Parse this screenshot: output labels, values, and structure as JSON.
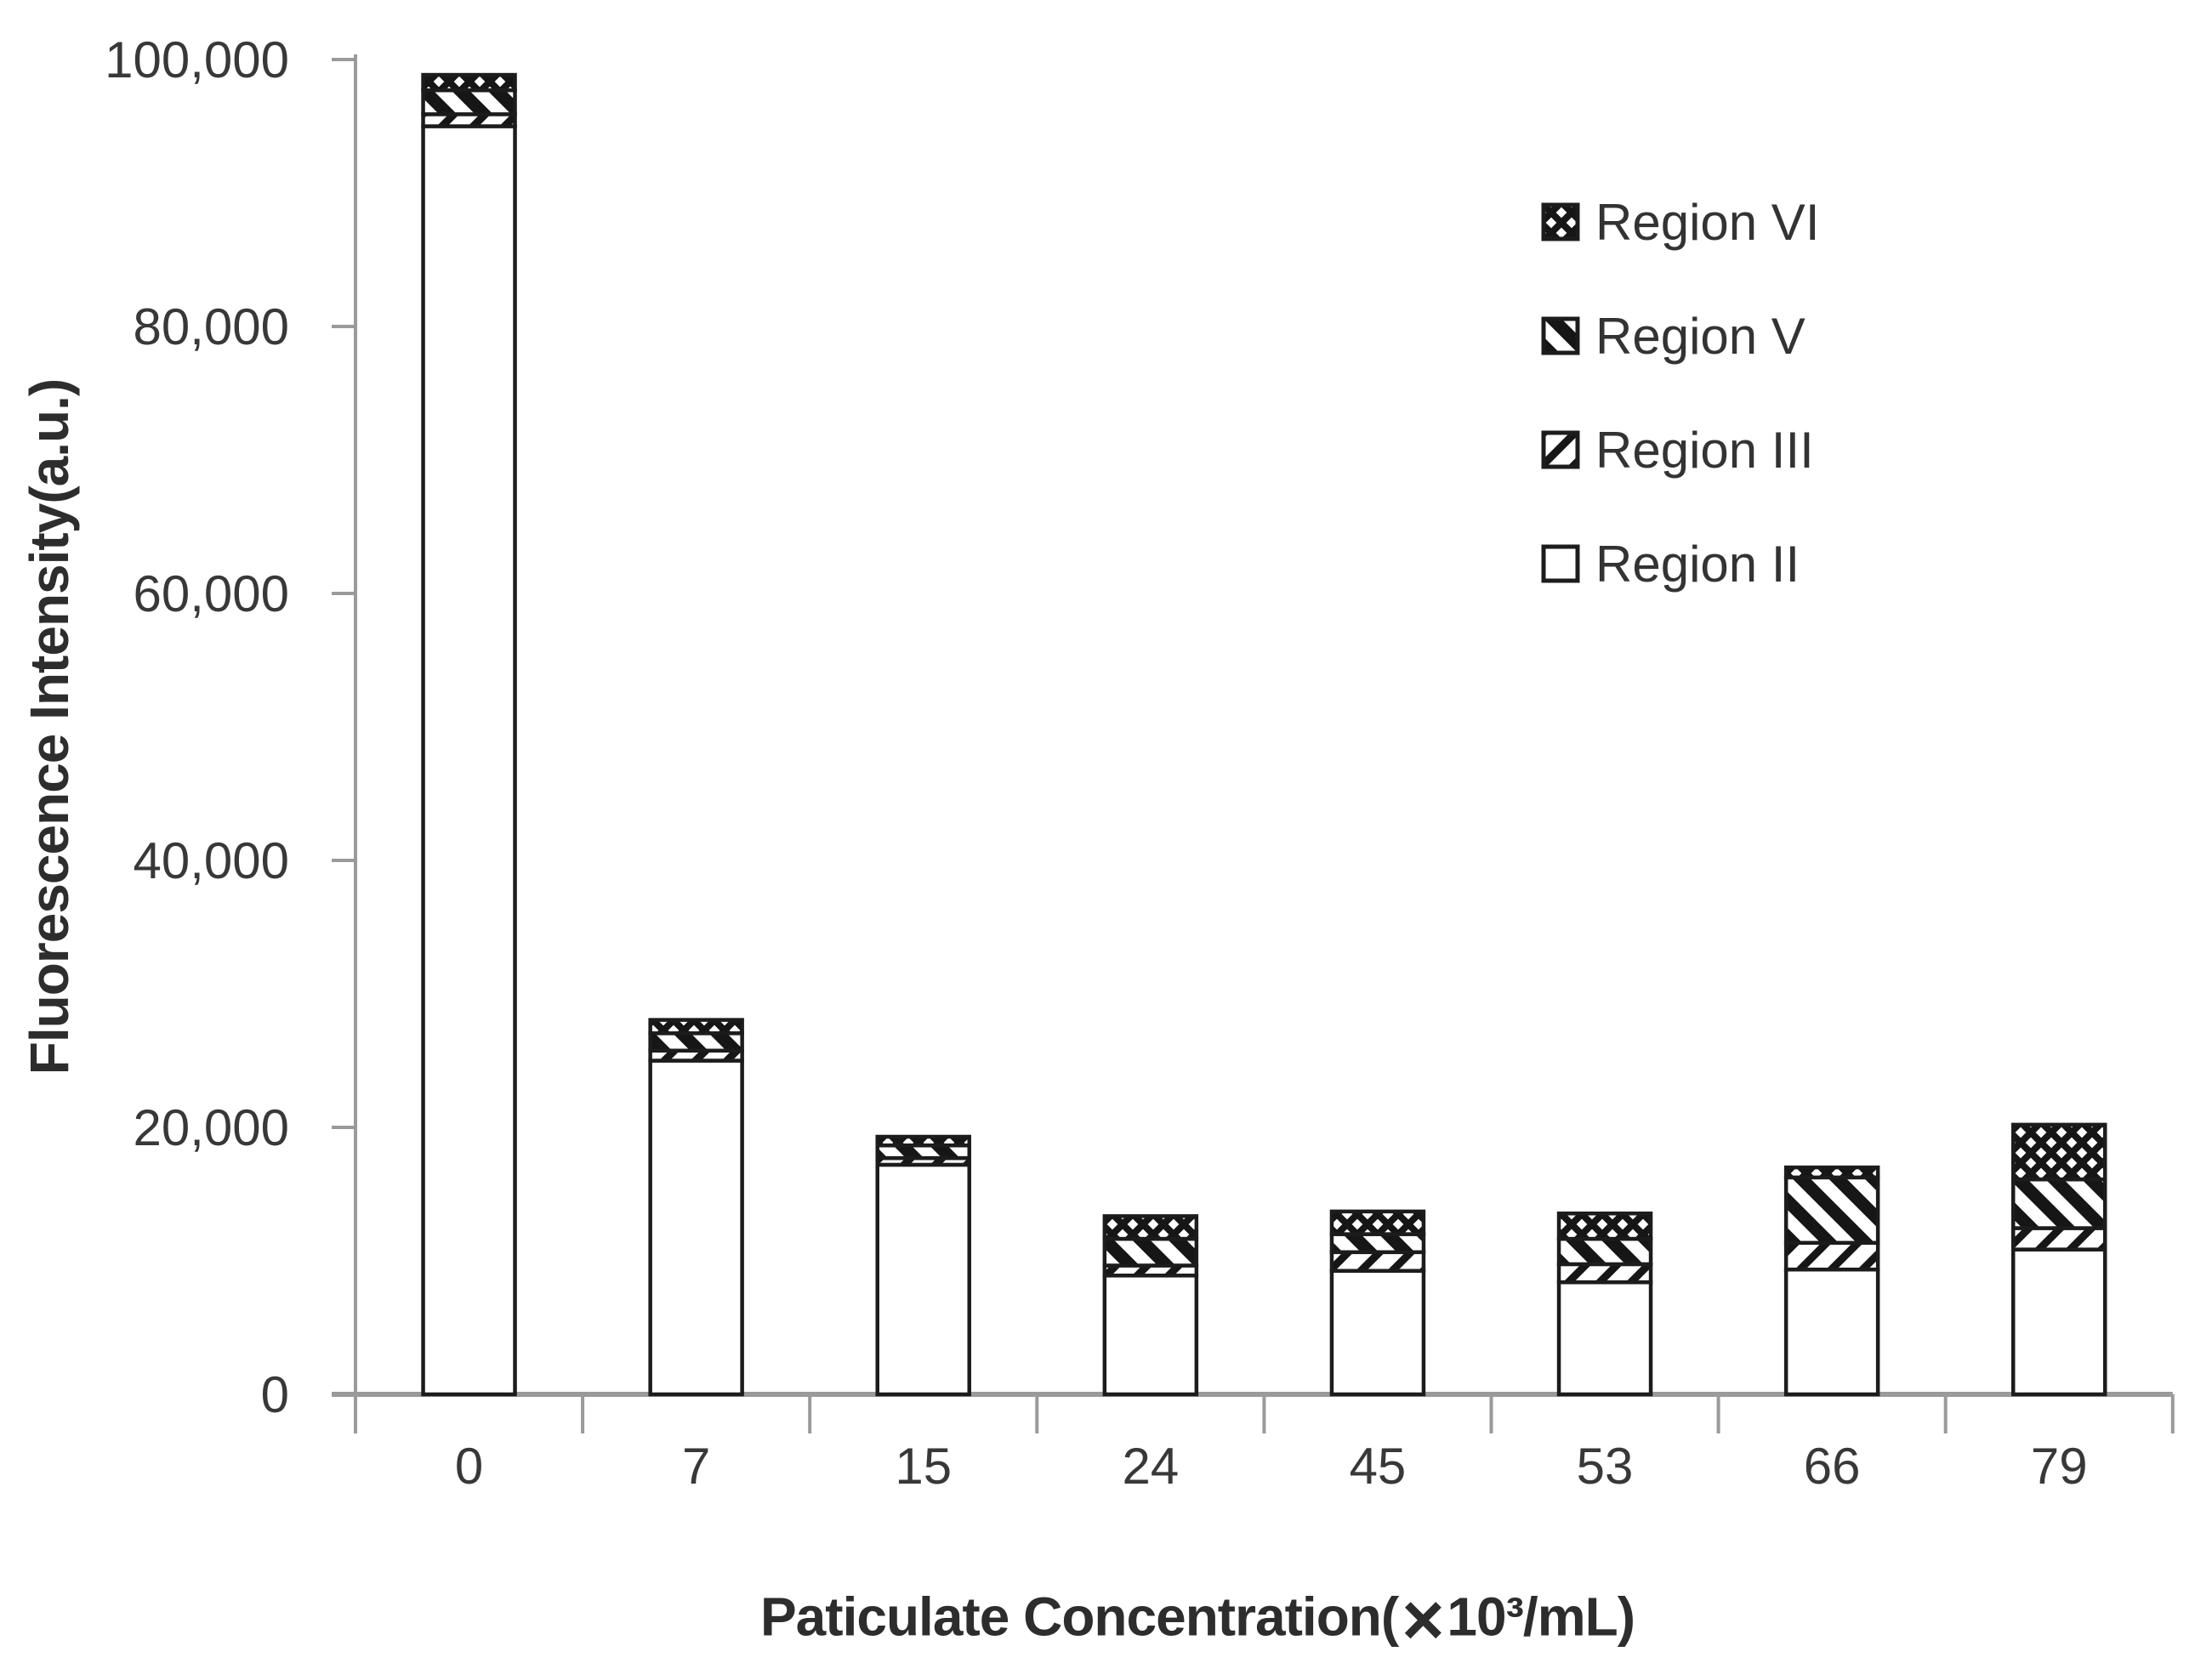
{
  "chart_data": {
    "type": "bar",
    "stacked": true,
    "title": "",
    "ylabel": "Fluorescence Intensity(a.u.)",
    "xlabel_prefix": "Paticulate Concentration(",
    "xlabel_times": "×",
    "xlabel_suffix": "10³/mL)",
    "categories": [
      0,
      7,
      15,
      24,
      45,
      53,
      66,
      79
    ],
    "series": [
      {
        "key": "region-ii",
        "name": "Region II",
        "pattern": "solid-white",
        "values": [
          95000,
          25000,
          17200,
          8900,
          9250,
          8400,
          9350,
          10850
        ]
      },
      {
        "key": "region-iii",
        "name": "Region III",
        "pattern": "diagonal-up",
        "values": [
          900,
          750,
          500,
          750,
          1400,
          1350,
          2000,
          1600
        ]
      },
      {
        "key": "region-v",
        "name": "Region V",
        "pattern": "diagonal-down",
        "values": [
          1800,
          1300,
          950,
          2000,
          1350,
          1900,
          4900,
          3650
        ]
      },
      {
        "key": "region-vi",
        "name": "Region VI",
        "pattern": "crosshatch",
        "values": [
          1150,
          1000,
          650,
          1700,
          1700,
          1900,
          750,
          4100
        ]
      }
    ],
    "ylim": [
      0,
      100000
    ],
    "yticks": [
      {
        "value": 0,
        "label": "0"
      },
      {
        "value": 20000,
        "label": "20,000"
      },
      {
        "value": 40000,
        "label": "40,000"
      },
      {
        "value": 60000,
        "label": "60,000"
      },
      {
        "value": 80000,
        "label": "80,000"
      },
      {
        "value": 100000,
        "label": "100,000"
      }
    ],
    "grid": false,
    "legend": {
      "position": "upper-right",
      "items": [
        {
          "key": "region-vi",
          "label": "Region VI",
          "pattern": "crosshatch"
        },
        {
          "key": "region-v",
          "label": "Region V",
          "pattern": "diagonal-down"
        },
        {
          "key": "region-iii",
          "label": "Region III",
          "pattern": "diagonal-up"
        },
        {
          "key": "region-ii",
          "label": "Region II",
          "pattern": "solid-white"
        }
      ]
    },
    "colors": {
      "axis": "#9a9a9a",
      "bar_stroke": "#1c1c1c",
      "text": "#383838",
      "pattern_ink": "#161616",
      "bar_fill_bg": "#ffffff"
    }
  }
}
